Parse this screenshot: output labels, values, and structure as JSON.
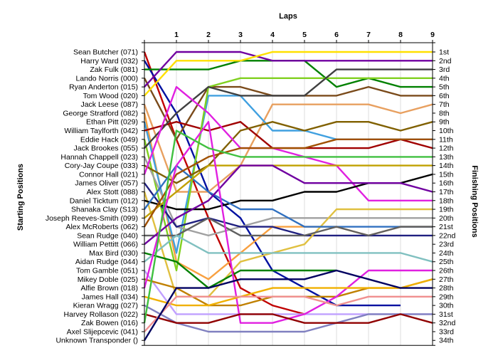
{
  "chart_data": {
    "type": "line",
    "title": "",
    "xlabel": "Laps",
    "ylabel_left": "Starting Positions",
    "ylabel_right": "Finishing Positions",
    "x_ticks": [
      "1",
      "2",
      "3",
      "4",
      "5",
      "6",
      "7",
      "8",
      "9"
    ],
    "starting_positions": [
      "Sean Butcher (071)",
      "Harry Ward (032)",
      "Zak Fulk (081)",
      "Lando Norris (000)",
      "Ryan Anderton (015)",
      "Tom Wood (020)",
      "Jack Leese (087)",
      "George Stratford (082)",
      "Ethan Pitt (029)",
      "William Taylforth (042)",
      "Eddie Hack (049)",
      "Jack Brookes (055)",
      "Hannah Chappell (023)",
      "Cory-Jay Coupe (033)",
      "Connor Hall (021)",
      "James Oliver (057)",
      "Alex Stott (088)",
      "Daniel Ticktum (012)",
      "Shanaka Clay (S13)",
      "Joseph Reeves-Smith (099)",
      "Alex McRoberts (062)",
      "Sean Rudge (040)",
      "William Pettitt (066)",
      "Max Bird (030)",
      "Aidan Rudge (044)",
      "Tom Gamble (051)",
      "Mikey Doble (025)",
      "Alfie Brown (018)",
      "James Hall (034)",
      "Kieran Wragg (027)",
      "Harvey Rollason (022)",
      "Zak Bowen (016)",
      "Axel Slijepcevic (041)",
      "Unknown Transponder ()"
    ],
    "finishing_positions": [
      "1st",
      "2nd",
      "3rd",
      "4th",
      "5th",
      "6th",
      "7th",
      "8th",
      "9th",
      "10th",
      "11th",
      "12th",
      "13th",
      "14th",
      "15th",
      "16th",
      "17th",
      "18th",
      "19th",
      "20th",
      "21st",
      "22nd",
      "23rd",
      "24th",
      "25th",
      "26th",
      "27th",
      "28th",
      "29th",
      "30th",
      "31st",
      "32nd",
      "33rd",
      "34th"
    ],
    "series": [
      {
        "color": "#c00000",
        "positions": [
          1,
          11,
          20,
          28,
          30,
          31
        ]
      },
      {
        "color": "#0010a0",
        "positions": [
          2,
          8,
          17,
          20,
          26,
          28,
          30,
          30,
          30
        ]
      },
      {
        "color": "#008000",
        "positions": [
          3,
          3,
          3,
          2,
          2,
          2,
          5,
          4,
          5,
          5
        ]
      },
      {
        "color": "#7a4a1a",
        "positions": [
          4,
          11,
          5,
          5,
          6,
          6,
          6,
          5,
          6,
          6
        ]
      },
      {
        "color": "#7000a0",
        "positions": [
          5,
          1,
          1,
          1,
          2,
          2,
          2,
          2,
          2,
          2
        ]
      },
      {
        "color": "#ffe000",
        "positions": [
          6,
          2,
          2,
          2,
          1,
          1,
          1,
          1,
          1,
          1
        ]
      },
      {
        "color": "#e8a060",
        "positions": [
          7,
          17,
          17,
          14,
          7,
          7,
          7,
          7,
          8,
          7
        ]
      },
      {
        "color": "#f8a040",
        "positions": [
          8,
          25,
          27,
          24,
          21,
          21,
          21,
          22,
          21,
          21
        ]
      },
      {
        "color": "#40a0e0",
        "positions": [
          9,
          24,
          6,
          6,
          10,
          10,
          11,
          11,
          11,
          11
        ]
      },
      {
        "color": "#a00000",
        "positions": [
          10,
          9,
          10,
          9,
          12,
          12,
          12,
          12,
          11,
          12
        ]
      },
      {
        "color": "#80d020",
        "positions": [
          11,
          26,
          5,
          4,
          4,
          4,
          4,
          4,
          4,
          4
        ]
      },
      {
        "color": "#404040",
        "positions": [
          12,
          8,
          5,
          6,
          6,
          6,
          3,
          3,
          3,
          3
        ]
      },
      {
        "color": "#a0a0a0",
        "positions": [
          13,
          21,
          22,
          21,
          20,
          20,
          20,
          20,
          20,
          20
        ]
      },
      {
        "color": "#806000",
        "positions": [
          14,
          16,
          14,
          10,
          9,
          10,
          9,
          9,
          10,
          9
        ]
      },
      {
        "color": "#e020e0",
        "positions": [
          15,
          5,
          8,
          12,
          12,
          13,
          14,
          18,
          18,
          18
        ]
      },
      {
        "color": "#202080",
        "positions": [
          16,
          21,
          20,
          21,
          21,
          22,
          22,
          22,
          22,
          22
        ]
      },
      {
        "color": "#e0c040",
        "positions": [
          17,
          29,
          29,
          25,
          24,
          23,
          19,
          19,
          19,
          19
        ]
      },
      {
        "color": "#000000",
        "positions": [
          18,
          19,
          19,
          18,
          18,
          17,
          17,
          16,
          16,
          15
        ]
      },
      {
        "color": "#3070c0",
        "positions": [
          19,
          14,
          17,
          19,
          19,
          21,
          21,
          21,
          21,
          21
        ]
      },
      {
        "color": "#c0a000",
        "positions": [
          20,
          17,
          14,
          14,
          14,
          14,
          14,
          14,
          14,
          14
        ]
      },
      {
        "color": "#a05000",
        "positions": [
          21,
          15,
          13,
          12,
          12,
          12,
          11,
          11,
          11,
          11
        ]
      },
      {
        "color": "#606060",
        "positions": [
          22,
          22,
          20,
          22,
          22,
          22,
          21,
          22,
          21,
          21
        ]
      },
      {
        "color": "#7000a0",
        "positions": [
          23,
          20,
          18,
          14,
          14,
          16,
          16,
          16,
          16,
          17
        ]
      },
      {
        "color": "#008000",
        "positions": [
          24,
          25,
          28,
          26,
          26,
          26,
          26
        ]
      },
      {
        "color": "#80c0c0",
        "positions": [
          25,
          22,
          24,
          24,
          24,
          24,
          24,
          24,
          24,
          25
        ]
      },
      {
        "color": "#c0a0ff",
        "positions": [
          26,
          31,
          31,
          31,
          31,
          31,
          31,
          31,
          31,
          31
        ]
      },
      {
        "color": "#c08000",
        "positions": [
          27,
          28,
          30,
          30,
          29,
          29,
          29,
          28,
          28,
          27
        ]
      },
      {
        "color": "#e020e0",
        "positions": [
          28,
          14,
          9,
          32,
          32,
          31,
          29,
          26,
          26,
          26
        ]
      },
      {
        "color": "#f0b000",
        "positions": [
          29,
          30,
          30,
          29,
          28,
          28,
          28,
          28,
          28,
          27
        ]
      },
      {
        "color": "#8080c0",
        "positions": [
          30,
          32,
          33,
          33,
          33,
          33,
          32,
          31,
          31,
          31
        ]
      },
      {
        "color": "#900000",
        "positions": [
          31,
          32,
          32,
          31,
          31,
          32,
          32,
          32,
          31,
          32
        ]
      },
      {
        "color": "#40c040",
        "positions": [
          32,
          10,
          12,
          13,
          13,
          13,
          13,
          13,
          13,
          13
        ]
      },
      {
        "color": "#f09090",
        "positions": [
          33,
          29,
          29,
          29,
          29,
          29,
          30,
          29,
          29,
          29
        ]
      },
      {
        "color": "#000060",
        "positions": [
          34,
          28,
          28,
          27,
          27,
          27,
          26,
          27,
          28,
          28
        ]
      }
    ]
  }
}
